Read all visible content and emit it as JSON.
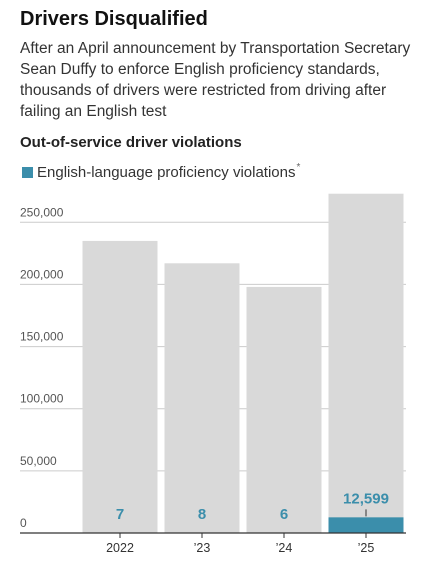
{
  "header": {
    "title": "Drivers Disqualified",
    "subtitle": "After an April announcement by Transportation Secretary Sean Duffy to enforce English proficiency standards, thousands of drivers were restricted from driving after failing an English test",
    "chart_heading": "Out-of-service driver violations"
  },
  "legend": {
    "label": "English-language proficiency violations",
    "note": "*"
  },
  "colors": {
    "total_bar": "#d9d9d9",
    "elp_bar": "#3b8eab",
    "value_label": "#3b8eab",
    "grid": "#cccccc",
    "axis": "#333333",
    "tick_label": "#555555"
  },
  "chart_data": {
    "type": "bar",
    "categories": [
      "2022",
      "’23",
      "’24",
      "’25"
    ],
    "series": [
      {
        "name": "Out-of-service driver violations",
        "values": [
          235000,
          217000,
          198000,
          273000
        ]
      },
      {
        "name": "English-language proficiency violations",
        "values": [
          7,
          8,
          6,
          12599
        ]
      }
    ],
    "data_labels": [
      "7",
      "8",
      "6",
      "12,599"
    ],
    "y_ticks": [
      0,
      50000,
      100000,
      150000,
      200000,
      250000
    ],
    "y_tick_labels": [
      "0",
      "50,000",
      "100,000",
      "150,000",
      "200,000",
      "250,000"
    ],
    "ylim": [
      0,
      280000
    ],
    "grid": true,
    "legend_position": "top-left"
  }
}
